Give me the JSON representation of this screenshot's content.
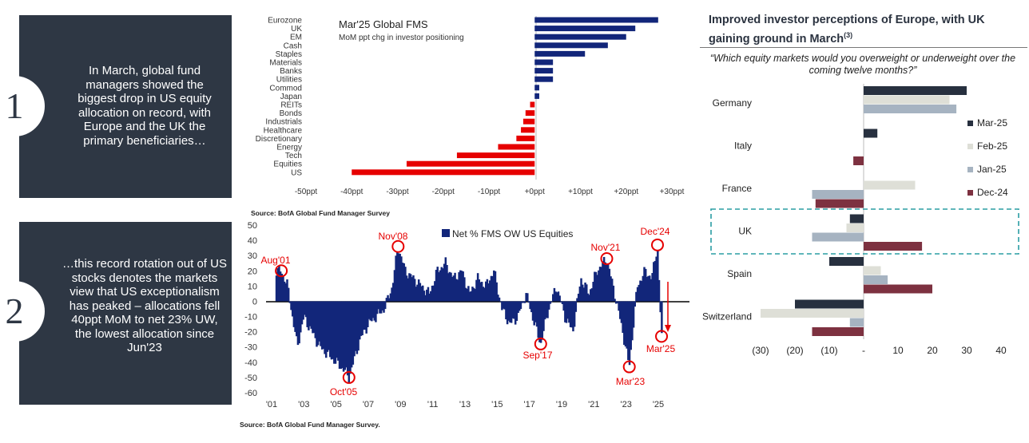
{
  "panel1": {
    "number": "1",
    "text": "In March, global fund managers showed the biggest drop in US equity allocation on record, with Europe and the UK the primary beneficiaries…"
  },
  "panel2": {
    "number": "2",
    "text": "…this record rotation out of US stocks denotes the markets view that US exceptionalism has peaked – allocations fell 40ppt MoM to net 23% UW, the lowest allocation since Jun'23"
  },
  "colors": {
    "panel": "#2e3744",
    "navy": "#12267a",
    "red": "#e60000",
    "mar": "#27303f",
    "feb": "#dedfd7",
    "jan": "#a6b3c1",
    "dec": "#7d3140",
    "teal": "#2a9da3"
  },
  "chart_data": [
    {
      "type": "bar",
      "orientation": "horizontal",
      "title": "Mar'25 Global FMS",
      "subtitle": "MoM ppt chg in investor positioning",
      "source": "Source:  BofA Global Fund Manager Survey",
      "categories": [
        "Eurozone",
        "UK",
        "EM",
        "Cash",
        "Staples",
        "Materials",
        "Banks",
        "Utilities",
        "Commod",
        "Japan",
        "REITs",
        "Bonds",
        "Industrials",
        "Healthcare",
        "Discretionary",
        "Energy",
        "Tech",
        "Equities",
        "US"
      ],
      "values": [
        27,
        22,
        20,
        16,
        11,
        4,
        4,
        4,
        1,
        1,
        -1,
        -2,
        -2.5,
        -3,
        -4,
        -8,
        -17,
        -28,
        -40
      ],
      "xlim": [
        -50,
        30
      ],
      "xticks": [
        "-50ppt",
        "-40ppt",
        "-30ppt",
        "-20ppt",
        "-10ppt",
        "+0ppt",
        "+10ppt",
        "+20ppt",
        "+30ppt"
      ]
    },
    {
      "type": "bar",
      "title": "Net % FMS OW US Equities",
      "source": "Source:  BofA Global Fund Manager Survey.",
      "yticks": [
        "50",
        "40",
        "30",
        "20",
        "10",
        "0",
        "-10",
        "-20",
        "-30",
        "-40",
        "-50",
        "-60"
      ],
      "ylim": [
        -60,
        50
      ],
      "xticks": [
        "'01",
        "'03",
        "'05",
        "'07",
        "'09",
        "'11",
        "'13",
        "'15",
        "'17",
        "'19",
        "'21",
        "'23",
        "'25"
      ],
      "xlim": [
        2001,
        2025.6
      ],
      "series": [
        {
          "name": "Net % FMS OW US Equities",
          "x": [
            2001.6,
            2002.0,
            2002.6,
            2003.0,
            2003.5,
            2004.0,
            2004.5,
            2005.0,
            2005.5,
            2005.8,
            2006.5,
            2007.0,
            2007.5,
            2008.0,
            2008.5,
            2008.85,
            2009.3,
            2009.8,
            2010.3,
            2010.8,
            2011.3,
            2011.8,
            2012.3,
            2012.8,
            2013.3,
            2013.8,
            2014.3,
            2014.8,
            2015.3,
            2015.8,
            2016.3,
            2016.8,
            2017.2,
            2017.7,
            2018.2,
            2018.7,
            2019.2,
            2019.7,
            2020.2,
            2020.7,
            2021.2,
            2021.8,
            2022.3,
            2022.8,
            2023.2,
            2023.7,
            2024.2,
            2024.6,
            2024.95,
            2025.2
          ],
          "values": [
            20,
            10,
            -30,
            -10,
            -20,
            -30,
            -35,
            -40,
            -45,
            -50,
            -25,
            -15,
            -10,
            -5,
            10,
            36,
            20,
            15,
            10,
            5,
            20,
            25,
            15,
            20,
            5,
            15,
            10,
            20,
            -5,
            -15,
            -10,
            5,
            -10,
            -28,
            -5,
            10,
            -10,
            -20,
            15,
            5,
            20,
            28,
            5,
            -20,
            -43,
            10,
            20,
            15,
            37,
            -23
          ]
        }
      ],
      "annotations": [
        "Aug'01",
        "Nov'08",
        "Nov'21",
        "Dec'24",
        "Oct'05",
        "Sep'17",
        "Mar'23",
        "Mar'25"
      ]
    },
    {
      "type": "bar",
      "orientation": "horizontal",
      "title": "Improved investor perceptions of Europe, with UK gaining ground in March",
      "title_note": "(3)",
      "subtitle": "“Which equity markets would you overweight or underweight over the coming twelve months?”",
      "categories": [
        "Germany",
        "Italy",
        "France",
        "UK",
        "Spain",
        "Switzerland"
      ],
      "series": [
        {
          "name": "Mar-25",
          "values": [
            30,
            4,
            0,
            -4,
            -10,
            -20
          ]
        },
        {
          "name": "Feb-25",
          "values": [
            25,
            0,
            15,
            -5,
            5,
            -30
          ]
        },
        {
          "name": "Jan-25",
          "values": [
            27,
            0,
            -15,
            -15,
            7,
            -4
          ]
        },
        {
          "name": "Dec-24",
          "values": [
            0,
            -3,
            -14,
            17,
            20,
            -15
          ]
        }
      ],
      "xlim": [
        -30,
        40
      ],
      "xticks": [
        "(30)",
        "(20)",
        "(10)",
        "-",
        "10",
        "20",
        "30",
        "40"
      ],
      "highlight": "UK"
    }
  ]
}
